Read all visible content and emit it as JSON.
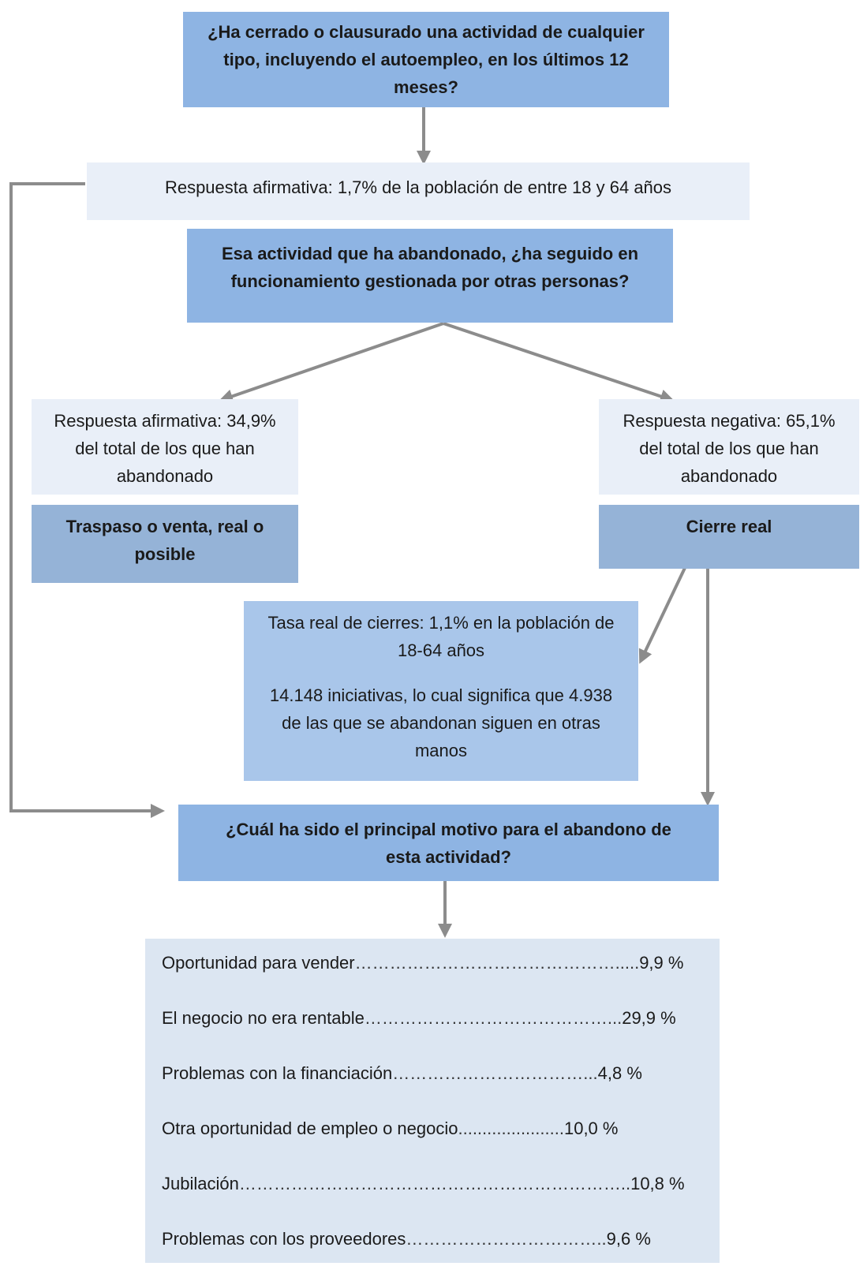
{
  "q1": {
    "text": "¿Ha cerrado o clausurado una actividad de cualquier tipo, incluyendo el autoempleo, en los últimos 12 meses?"
  },
  "resp_top": {
    "text": "Respuesta afirmativa: 1,7% de la población de entre 18 y 64 años"
  },
  "q2": {
    "text": "Esa actividad que ha abandonado, ¿ha seguido en funcionamiento gestionada por otras personas?"
  },
  "resp_yes": {
    "text": "Respuesta afirmativa: 34,9% del total de los que han abandonado"
  },
  "resp_no": {
    "text": "Respuesta negativa: 65,1% del total de los que han abandonado"
  },
  "traspaso": {
    "text": "Traspaso o venta, real o posible"
  },
  "cierre": {
    "text": "Cierre real"
  },
  "tasa": {
    "line1": "Tasa real de cierres: 1,1% en la población de 18-64 años",
    "line2": "14.148 iniciativas, lo cual significa que 4.938 de las que se abandonan siguen en otras manos"
  },
  "q3": {
    "text": "¿Cuál ha sido el principal motivo para el abandono de esta actividad?"
  },
  "motives": [
    {
      "label": "Oportunidad para vender",
      "dots": "……………………………………….....",
      "value": "9,9 %"
    },
    {
      "label": "El negocio no era rentable",
      "dots": "……………………………………...",
      "value": "29,9 %"
    },
    {
      "label": "Problemas con la financiación",
      "dots": "……………………………...",
      "value": "4,8 %"
    },
    {
      "label": "Otra oportunidad de empleo o negocio",
      "dots": "......................",
      "value": "10,0 %"
    },
    {
      "label": "Jubilación",
      "dots": "…………………………………………………………..",
      "value": "10,8 %"
    },
    {
      "label": "Problemas con los proveedores",
      "dots": "……………………………..",
      "value": "9,6 %"
    }
  ],
  "colors": {
    "question_fill": "#8eb4e3",
    "decision_fill": "#95b3d7",
    "response_fill": "#e9eff8",
    "tasa_fill": "#a9c6ea",
    "motives_fill": "#dce6f2",
    "arrow": "#8c8c8c"
  }
}
